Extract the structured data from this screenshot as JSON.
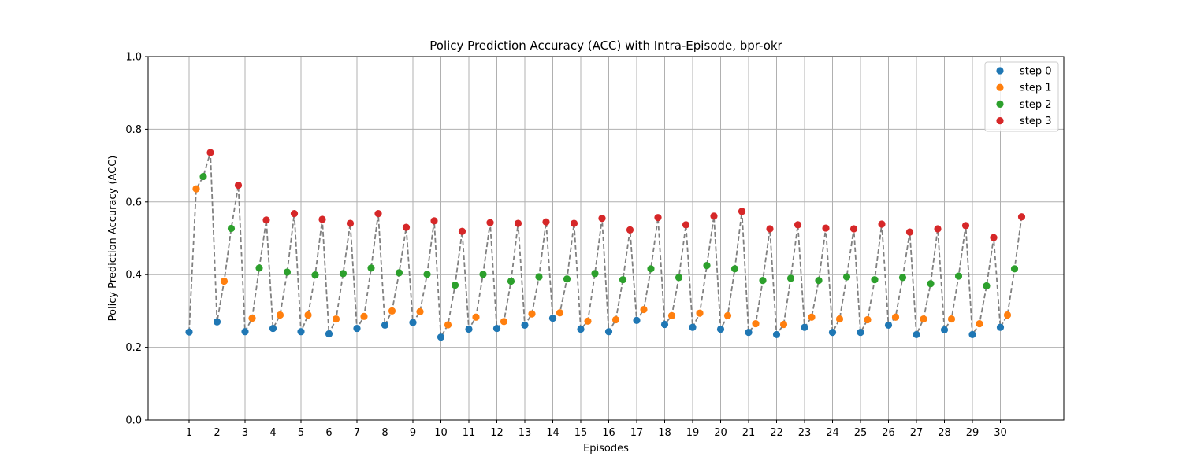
{
  "chart_data": {
    "type": "scatter",
    "title": "Policy Prediction Accuracy (ACC) with Intra-Episode, bpr-okr",
    "xlabel": "Episodes",
    "ylabel": "Policy Prediction Accuracy (ACC)",
    "ylim": [
      0.0,
      1.0
    ],
    "yticks": [
      "0.0",
      "0.2",
      "0.4",
      "0.6",
      "0.8",
      "1.0"
    ],
    "categories": [
      "1",
      "2",
      "3",
      "4",
      "5",
      "6",
      "7",
      "8",
      "9",
      "10",
      "11",
      "12",
      "13",
      "14",
      "15",
      "16",
      "17",
      "18",
      "19",
      "20",
      "21",
      "22",
      "23",
      "24",
      "25",
      "26",
      "27",
      "28",
      "29",
      "30"
    ],
    "grid": true,
    "legend_position": "top-right",
    "connector_line_color": "#808080",
    "series": [
      {
        "name": "step 0",
        "color": "#1f77b4",
        "values": [
          0.242,
          0.27,
          0.243,
          0.252,
          0.243,
          0.237,
          0.252,
          0.261,
          0.268,
          0.228,
          0.25,
          0.252,
          0.261,
          0.28,
          0.25,
          0.243,
          0.274,
          0.263,
          0.255,
          0.25,
          0.241,
          0.235,
          0.255,
          0.241,
          0.241,
          0.261,
          0.235,
          0.248,
          0.235,
          0.255
        ]
      },
      {
        "name": "step 1",
        "color": "#ff7f0e",
        "values": [
          0.636,
          0.382,
          0.28,
          0.289,
          0.289,
          0.278,
          0.285,
          0.3,
          0.298,
          0.262,
          0.283,
          0.271,
          0.292,
          0.295,
          0.272,
          0.276,
          0.304,
          0.287,
          0.294,
          0.287,
          0.265,
          0.263,
          0.283,
          0.278,
          0.276,
          0.283,
          0.278,
          0.278,
          0.265,
          0.289
        ]
      },
      {
        "name": "step 2",
        "color": "#2ca02c",
        "values": [
          0.67,
          0.527,
          0.418,
          0.407,
          0.399,
          0.403,
          0.418,
          0.405,
          0.401,
          0.371,
          0.401,
          0.382,
          0.394,
          0.388,
          0.403,
          0.386,
          0.416,
          0.392,
          0.425,
          0.416,
          0.384,
          0.39,
          0.384,
          0.394,
          0.386,
          0.392,
          0.375,
          0.396,
          0.369,
          0.416
        ]
      },
      {
        "name": "step 3",
        "color": "#d62728",
        "values": [
          0.736,
          0.646,
          0.55,
          0.568,
          0.552,
          0.541,
          0.568,
          0.53,
          0.548,
          0.519,
          0.543,
          0.541,
          0.545,
          0.541,
          0.555,
          0.523,
          0.557,
          0.537,
          0.561,
          0.574,
          0.526,
          0.537,
          0.528,
          0.526,
          0.539,
          0.517,
          0.526,
          0.535,
          0.502,
          0.559
        ]
      }
    ]
  }
}
